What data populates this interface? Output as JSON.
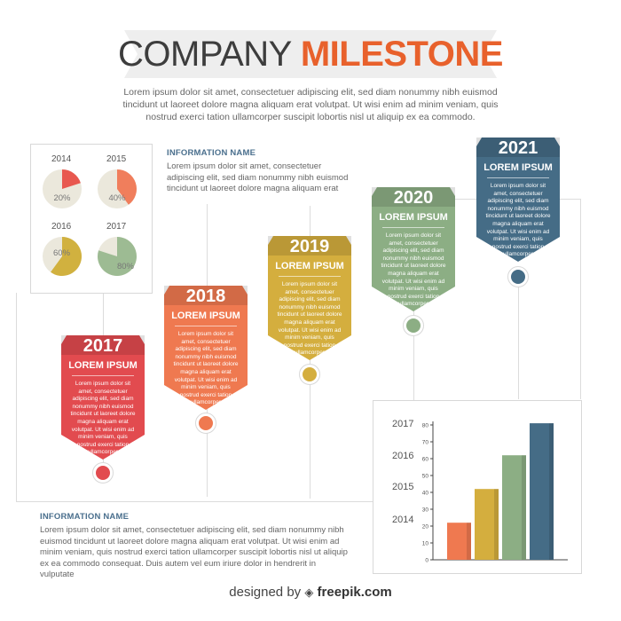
{
  "title": {
    "part1": "COMPANY",
    "part2": "MILESTONE"
  },
  "intro": "Lorem ipsum dolor sit amet, consectetuer adipiscing elit, sed diam nonummy nibh euismod tincidunt ut laoreet dolore magna aliquam erat volutpat. Ut wisi enim ad minim veniam, quis nostrud exerci tation ullamcorper suscipit lobortis nisl ut aliquip ex ea commodo.",
  "pies": [
    {
      "year": "2014",
      "label": "20%",
      "value": 20,
      "color": "#e8584f"
    },
    {
      "year": "2015",
      "label": "40%",
      "value": 40,
      "color": "#f07e5c"
    },
    {
      "year": "2016",
      "label": "60%",
      "value": 60,
      "color": "#d1b13f"
    },
    {
      "year": "2017",
      "label": "80%",
      "value": 80,
      "color": "#9dbb93"
    }
  ],
  "info_top": {
    "title": "INFORMATION NAME",
    "text": "Lorem ipsum dolor sit amet, consectetuer adipiscing elit, sed diam nonummy nibh euismod tincidunt ut laoreet dolore magna aliquam erat"
  },
  "milestones": [
    {
      "year": "2017",
      "label": "LOREM IPSUM",
      "color": "#e24b4f",
      "text": "Lorem ipsum dolor sit amet, consectetuer adipiscing elit, sed diam nonummy nibh euismod tincidunt ut laoreet dolore magna aliquam erat volutpat. Ut wisi enim ad minim veniam, quis nostrud exerci tation ullamcorper"
    },
    {
      "year": "2018",
      "label": "LOREM IPSUM",
      "color": "#ef7950",
      "text": "Lorem ipsum dolor sit amet, consectetuer adipiscing elit, sed diam nonummy nibh euismod tincidunt ut laoreet dolore magna aliquam erat volutpat. Ut wisi enim ad minim veniam, quis nostrud exerci tation ullamcorper"
    },
    {
      "year": "2019",
      "label": "LOREM IPSUM",
      "color": "#d4ae3e",
      "text": "Lorem ipsum dolor sit amet, consectetuer adipiscing elit, sed diam nonummy nibh euismod tincidunt ut laoreet dolore magna aliquam erat volutpat. Ut wisi enim ad minim veniam, quis nostrud exerci tation ullamcorper"
    },
    {
      "year": "2020",
      "label": "LOREM IPSUM",
      "color": "#8cae84",
      "text": "Lorem ipsum dolor sit amet, consectetuer adipiscing elit, sed diam nonummy nibh euismod tincidunt ut laoreet dolore magna aliquam erat volutpat. Ut wisi enim ad minim veniam, quis nostrud exerci tation ullamcorper"
    },
    {
      "year": "2021",
      "label": "LOREM IPSUM",
      "color": "#456c86",
      "text": "Lorem ipsum dolor sit amet, consectetuer adipiscing elit, sed diam nonummy nibh euismod tincidunt ut laoreet dolore magna aliquam erat volutpat. Ut wisi enim ad minim veniam, quis nostrud exerci tation ullamcorper"
    }
  ],
  "info_bottom": {
    "title": "INFORMATION NAME",
    "text": "Lorem ipsum dolor sit amet, consectetuer adipiscing elit, sed diam nonummy nibh euismod tincidunt ut laoreet dolore magna aliquam erat volutpat. Ut wisi enim ad minim veniam, quis nostrud exerci tation ullamcorper suscipit lobortis nisl ut aliquip ex ea commodo consequat. Duis autem vel eum iriure dolor in hendrerit in vulputate"
  },
  "chart_data": {
    "type": "bar",
    "categories": [
      "",
      "",
      "",
      ""
    ],
    "values": [
      22,
      42,
      62,
      81
    ],
    "colors": [
      "#ef7950",
      "#d4ae3e",
      "#8cae84",
      "#456c86"
    ],
    "ylim": [
      0,
      80
    ],
    "yticks": [
      "0",
      "10",
      "20",
      "30",
      "40",
      "50",
      "60",
      "70",
      "80"
    ],
    "year_labels": [
      "2017",
      "2016",
      "2015",
      "2014"
    ],
    "grid": false
  },
  "footer": {
    "prefix": "designed by",
    "brand": "freepik.com"
  }
}
